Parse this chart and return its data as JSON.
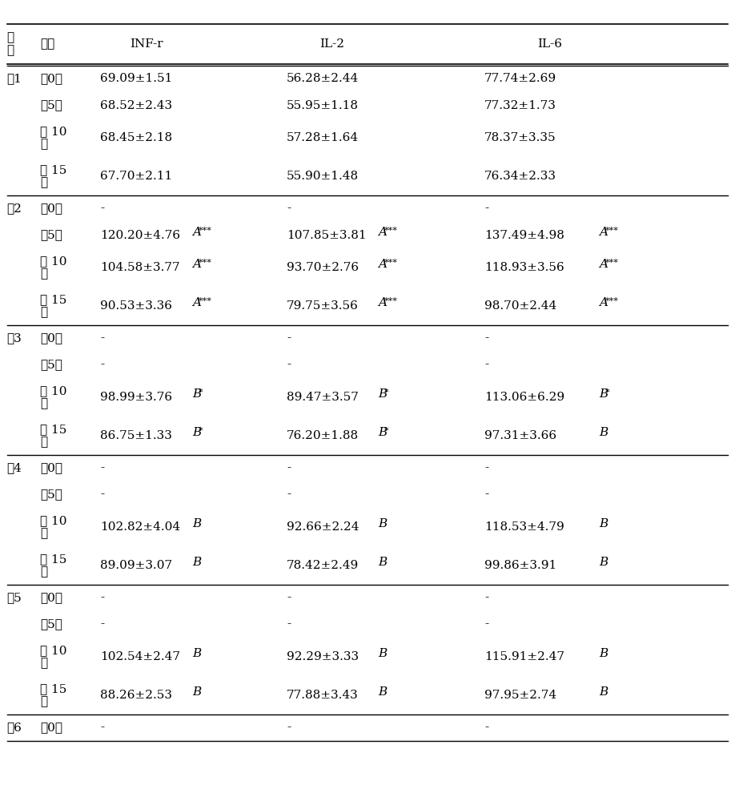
{
  "headers": [
    "组别",
    "天数",
    "INF-r",
    "",
    "IL-2",
    "",
    "IL-6",
    ""
  ],
  "col_labels": [
    "组别",
    "天数",
    "INF-r",
    "IL-2",
    "IL-6"
  ],
  "rows": [
    {
      "group": "组1",
      "days": [
        "共0天",
        "共5天",
        "第 10\n天",
        "第 15\n天"
      ],
      "infr": [
        "69.09±1.51",
        "68.52±2.43",
        "68.45±2.18",
        "67.70±2.11"
      ],
      "infr_mark": [
        "",
        "",
        "",
        ""
      ],
      "il2": [
        "56.28±2.44",
        "55.95±1.18",
        "57.28±1.64",
        "55.90±1.48"
      ],
      "il2_mark": [
        "",
        "",
        "",
        ""
      ],
      "il6": [
        "77.74±2.69",
        "77.32±1.73",
        "78.37±3.35",
        "76.34±2.33"
      ],
      "il6_mark": [
        "",
        "",
        "",
        ""
      ]
    },
    {
      "group": "组2",
      "days": [
        "共0天",
        "共5天",
        "第 10\n天",
        "第 15\n天"
      ],
      "infr": [
        "-",
        "120.20±4.76",
        "104.58±3.77",
        "90.53±3.36"
      ],
      "infr_mark": [
        "",
        "A***",
        "A***",
        "A***"
      ],
      "il2": [
        "-",
        "107.85±3.81",
        "93.70±2.76",
        "79.75±3.56"
      ],
      "il2_mark": [
        "",
        "A***",
        "A***",
        "A***"
      ],
      "il6": [
        "-",
        "137.49±4.98",
        "118.93±3.56",
        "98.70±2.44"
      ],
      "il6_mark": [
        "",
        "A***",
        "A***",
        "A***"
      ]
    },
    {
      "group": "组3",
      "days": [
        "共0天",
        "共5天",
        "第 10\n天",
        "第 15\n天"
      ],
      "infr": [
        "-",
        "-",
        "98.99±3.76",
        "86.75±1.33"
      ],
      "infr_mark": [
        "",
        "",
        "B*",
        "B*"
      ],
      "il2": [
        "-",
        "-",
        "89.47±3.57",
        "76.20±1.88"
      ],
      "il2_mark": [
        "",
        "",
        "B*",
        "B*"
      ],
      "il6": [
        "-",
        "-",
        "113.06±6.29",
        "97.31±3.66"
      ],
      "il6_mark": [
        "",
        "",
        "B*",
        "B"
      ]
    },
    {
      "group": "组4",
      "days": [
        "共0天",
        "共5天",
        "第 10\n天",
        "第 15\n天"
      ],
      "infr": [
        "-",
        "-",
        "102.82±4.04",
        "89.09±3.07"
      ],
      "infr_mark": [
        "",
        "",
        "B",
        "B"
      ],
      "il2": [
        "-",
        "-",
        "92.66±2.24",
        "78.42±2.49"
      ],
      "il2_mark": [
        "",
        "",
        "B",
        "B"
      ],
      "il6": [
        "-",
        "-",
        "118.53±4.79",
        "99.86±3.91"
      ],
      "il6_mark": [
        "",
        "",
        "B",
        "B"
      ]
    },
    {
      "group": "组5",
      "days": [
        "共0天",
        "共5天",
        "第 10\n天",
        "第 15\n天"
      ],
      "infr": [
        "-",
        "-",
        "102.54±2.47",
        "88.26±2.53"
      ],
      "infr_mark": [
        "",
        "",
        "B",
        "B"
      ],
      "il2": [
        "-",
        "-",
        "92.29±3.33",
        "77.88±3.43"
      ],
      "il2_mark": [
        "",
        "",
        "B",
        "B"
      ],
      "il6": [
        "-",
        "-",
        "115.91±2.47",
        "97.95±2.74"
      ],
      "il6_mark": [
        "",
        "",
        "B",
        "B"
      ]
    },
    {
      "group": "组6",
      "days": [
        "共0天"
      ],
      "infr": [
        "-"
      ],
      "infr_mark": [
        ""
      ],
      "il2": [
        "-"
      ],
      "il2_mark": [
        ""
      ],
      "il6": [
        "-"
      ],
      "il6_mark": [
        ""
      ]
    }
  ],
  "background_color": "#ffffff",
  "text_color": "#000000",
  "font_size": 11,
  "header_font_size": 11
}
